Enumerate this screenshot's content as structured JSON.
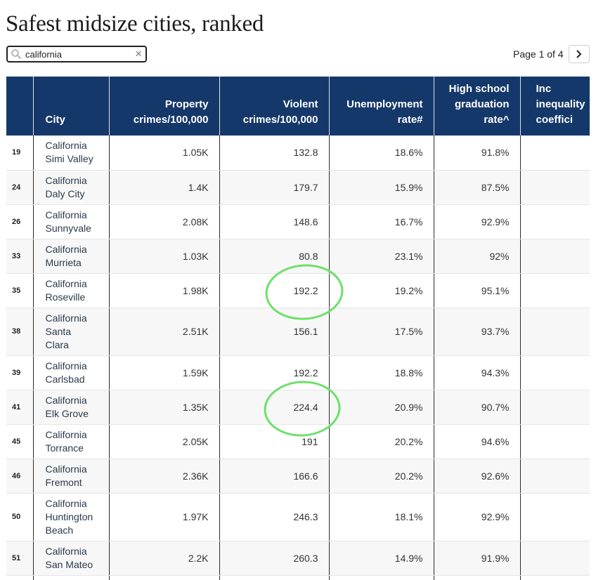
{
  "page": {
    "title": "Safest midsize cities, ranked"
  },
  "search": {
    "value": "california",
    "clear_glyph": "×"
  },
  "pager": {
    "label": "Page 1 of 4"
  },
  "colors": {
    "header_bg": "#15386a",
    "annotation_circle": "#6ee06a"
  },
  "table": {
    "headers": [
      {
        "key": "rank",
        "label": ""
      },
      {
        "key": "city",
        "label": "City"
      },
      {
        "key": "property",
        "line1": "Property",
        "line2": "crimes/100,000"
      },
      {
        "key": "violent",
        "line1": "Violent",
        "line2": "crimes/100,000"
      },
      {
        "key": "unemployment",
        "line1": "Unemployment",
        "line2": "rate#"
      },
      {
        "key": "graduation",
        "line1": "High school",
        "line2": "graduation",
        "line3": "rate^"
      },
      {
        "key": "inequality",
        "line1": "Inc",
        "line2": "inequality",
        "line3": "coeffici"
      }
    ],
    "rows": [
      {
        "rank": "19",
        "state": "California",
        "city_lines": [
          "Simi Valley"
        ],
        "property": "1.05K",
        "violent": "132.8",
        "unemployment": "18.6%",
        "graduation": "91.8%",
        "inequality": ""
      },
      {
        "rank": "24",
        "state": "California",
        "city_lines": [
          "Daly City"
        ],
        "property": "1.4K",
        "violent": "179.7",
        "unemployment": "15.9%",
        "graduation": "87.5%",
        "inequality": ""
      },
      {
        "rank": "26",
        "state": "California",
        "city_lines": [
          "Sunnyvale"
        ],
        "property": "2.08K",
        "violent": "148.6",
        "unemployment": "16.7%",
        "graduation": "92.9%",
        "inequality": ""
      },
      {
        "rank": "33",
        "state": "California",
        "city_lines": [
          "Murrieta"
        ],
        "property": "1.03K",
        "violent": "80.8",
        "unemployment": "23.1%",
        "graduation": "92%",
        "inequality": ""
      },
      {
        "rank": "35",
        "state": "California",
        "city_lines": [
          "Roseville"
        ],
        "property": "1.98K",
        "violent": "192.2",
        "unemployment": "19.2%",
        "graduation": "95.1%",
        "inequality": ""
      },
      {
        "rank": "38",
        "state": "California",
        "city_lines": [
          "Santa",
          "Clara"
        ],
        "property": "2.51K",
        "violent": "156.1",
        "unemployment": "17.5%",
        "graduation": "93.7%",
        "inequality": ""
      },
      {
        "rank": "39",
        "state": "California",
        "city_lines": [
          "Carlsbad"
        ],
        "property": "1.59K",
        "violent": "192.2",
        "unemployment": "18.8%",
        "graduation": "94.3%",
        "inequality": ""
      },
      {
        "rank": "41",
        "state": "California",
        "city_lines": [
          "Elk Grove"
        ],
        "property": "1.35K",
        "violent": "224.4",
        "unemployment": "20.9%",
        "graduation": "90.7%",
        "inequality": ""
      },
      {
        "rank": "45",
        "state": "California",
        "city_lines": [
          "Torrance"
        ],
        "property": "2.05K",
        "violent": "191",
        "unemployment": "20.2%",
        "graduation": "94.6%",
        "inequality": ""
      },
      {
        "rank": "46",
        "state": "California",
        "city_lines": [
          "Fremont"
        ],
        "property": "2.36K",
        "violent": "166.6",
        "unemployment": "20.2%",
        "graduation": "92.6%",
        "inequality": ""
      },
      {
        "rank": "50",
        "state": "California",
        "city_lines": [
          "Huntington",
          "Beach"
        ],
        "property": "1.97K",
        "violent": "246.3",
        "unemployment": "18.1%",
        "graduation": "92.9%",
        "inequality": ""
      },
      {
        "rank": "51",
        "state": "California",
        "city_lines": [
          "San Mateo"
        ],
        "property": "2.2K",
        "violent": "260.3",
        "unemployment": "14.9%",
        "graduation": "91.9%",
        "inequality": ""
      },
      {
        "rank": "",
        "state": "",
        "city_lines": [],
        "property": "",
        "violent": "",
        "unemployment": "",
        "graduation": "",
        "inequality": ""
      }
    ]
  }
}
